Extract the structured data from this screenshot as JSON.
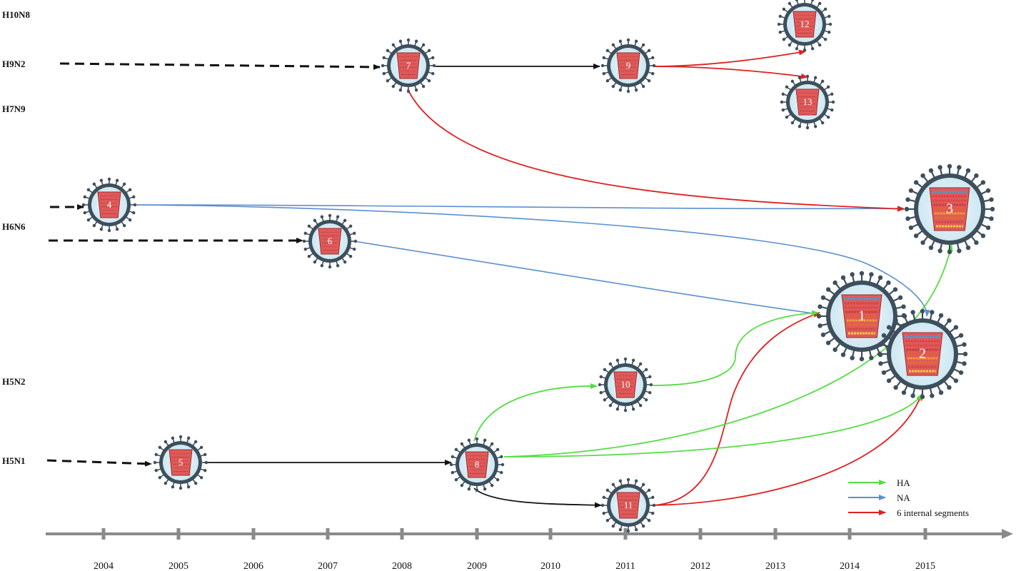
{
  "subtypes": [
    "H10N8",
    "H9N2",
    "H7N9",
    "H6N6",
    "H5N2",
    "H5N1"
  ],
  "years": [
    "2004",
    "2005",
    "2006",
    "2007",
    "2008",
    "2009",
    "2010",
    "2011",
    "2012",
    "2013",
    "2014",
    "2015"
  ],
  "nodes": [
    "1",
    "2",
    "3",
    "4",
    "5",
    "6",
    "7",
    "8",
    "9",
    "10",
    "11",
    "12",
    "13"
  ],
  "legend": {
    "ha": "HA",
    "na": "NA",
    "internal": "6 internal segments"
  },
  "colors": {
    "ha": "#55dd44",
    "na": "#5b8fd0",
    "internal": "#e02020",
    "lineage": "#111111",
    "axis": "#8a8a8a",
    "virus_core": "#e05a5a",
    "virus_shell": "#3d4f5c"
  }
}
